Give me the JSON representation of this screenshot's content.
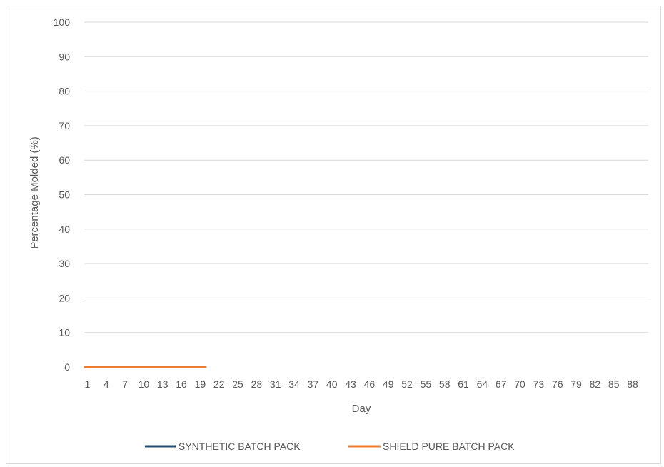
{
  "chart_data": {
    "type": "line",
    "title": "",
    "xlabel": "Day",
    "ylabel": "Percentage Molded (%)",
    "ylim": [
      0,
      100
    ],
    "yticks": [
      0,
      10,
      20,
      30,
      40,
      50,
      60,
      70,
      80,
      90,
      100
    ],
    "x": [
      1,
      2,
      3,
      4,
      5,
      6,
      7,
      8,
      9,
      10,
      11,
      12,
      13,
      14,
      15,
      16,
      17,
      18,
      19,
      20,
      21,
      22,
      23,
      24,
      25,
      26,
      27,
      28,
      29,
      30,
      31,
      32,
      33,
      34,
      35,
      36,
      37,
      38,
      39,
      40,
      41,
      42,
      43,
      44,
      45,
      46,
      47,
      48,
      49,
      50,
      51,
      52,
      53,
      54,
      55,
      56,
      57,
      58,
      59,
      60,
      61,
      62,
      63,
      64,
      65,
      66,
      67,
      68,
      69,
      70,
      71,
      72,
      73,
      74,
      75,
      76,
      77,
      78,
      79,
      80,
      81,
      82,
      83,
      84,
      85,
      86,
      87,
      88,
      89,
      90
    ],
    "xtick_labels": [
      "1",
      "4",
      "7",
      "10",
      "13",
      "16",
      "19",
      "22",
      "25",
      "28",
      "31",
      "34",
      "37",
      "40",
      "43",
      "46",
      "49",
      "52",
      "55",
      "58",
      "61",
      "64",
      "67",
      "70",
      "73",
      "76",
      "79",
      "82",
      "85",
      "88"
    ],
    "grid": true,
    "legend": "bottom",
    "series": [
      {
        "name": "SYNTHETIC BATCH PACK",
        "color": "#1f4e79",
        "x": [
          1,
          2,
          3,
          4,
          5,
          6,
          7,
          8,
          9,
          10,
          11,
          12,
          13,
          14,
          15,
          16,
          17,
          18,
          19,
          20
        ],
        "values": [
          0,
          0,
          0,
          0,
          0,
          0,
          0,
          0,
          0,
          0,
          0,
          0,
          0,
          0,
          0,
          0,
          0,
          0,
          0,
          0
        ]
      },
      {
        "name": "SHIELD PURE BATCH PACK",
        "color": "#ed7d31",
        "x": [
          1,
          2,
          3,
          4,
          5,
          6,
          7,
          8,
          9,
          10,
          11,
          12,
          13,
          14,
          15,
          16,
          17,
          18,
          19,
          20
        ],
        "values": [
          0,
          0,
          0,
          0,
          0,
          0,
          0,
          0,
          0,
          0,
          0,
          0,
          0,
          0,
          0,
          0,
          0,
          0,
          0,
          0
        ]
      }
    ]
  }
}
